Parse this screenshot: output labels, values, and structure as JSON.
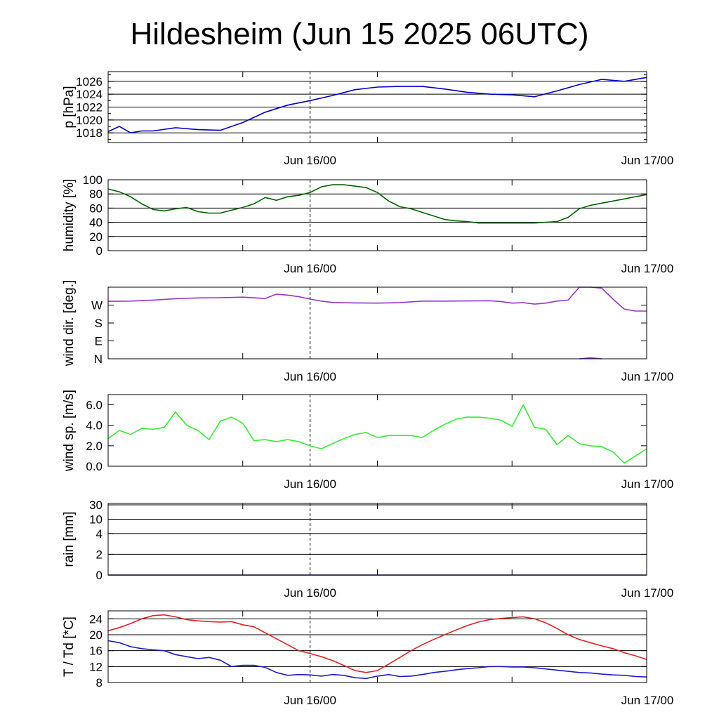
{
  "title": "Hildesheim (Jun 15 2025 06UTC)",
  "x_tick_labels": [
    "Jun 16/00",
    "Jun 17/00"
  ],
  "chart_data": [
    {
      "type": "line",
      "ylabel": "p [hPa]",
      "ylim": [
        1016.5,
        1027.5
      ],
      "yticks": [
        1018,
        1020,
        1022,
        1024,
        1026
      ],
      "ytick_labels": [
        "1018",
        "1020",
        "1022",
        "1024",
        "1026"
      ],
      "grid": true,
      "x_hours": [
        0,
        1,
        2,
        3,
        4,
        6,
        8,
        10,
        12,
        14,
        16,
        18,
        20,
        22,
        24,
        26,
        28,
        30,
        32,
        34,
        36,
        38,
        40,
        42,
        44,
        46,
        48
      ],
      "series": [
        {
          "color": "#0000cc",
          "values": [
            1018.2,
            1019.0,
            1018.0,
            1018.3,
            1018.3,
            1018.8,
            1018.5,
            1018.4,
            1019.6,
            1021.2,
            1022.3,
            1023.0,
            1023.8,
            1024.7,
            1025.1,
            1025.2,
            1025.2,
            1024.8,
            1024.3,
            1024.0,
            1023.9,
            1023.6,
            1024.5,
            1025.5,
            1026.3,
            1026.0,
            1026.6
          ]
        }
      ]
    },
    {
      "type": "line",
      "ylabel": "humidity [%]",
      "ylim": [
        0,
        100
      ],
      "yticks": [
        0,
        20,
        40,
        60,
        80,
        100
      ],
      "ytick_labels": [
        "0",
        "20",
        "40",
        "60",
        "80",
        "100"
      ],
      "grid": true,
      "x_hours": [
        0,
        1,
        2,
        3,
        4,
        5,
        6,
        7,
        8,
        9,
        10,
        11,
        12,
        13,
        14,
        15,
        16,
        17,
        18,
        19,
        20,
        21,
        22,
        23,
        24,
        25,
        26,
        27,
        28,
        29,
        30,
        31,
        32,
        33,
        34,
        35,
        36,
        37,
        38,
        39,
        40,
        41,
        42,
        43,
        44,
        45,
        46,
        47,
        48
      ],
      "series": [
        {
          "color": "#006400",
          "values": [
            87,
            83,
            76,
            66,
            58,
            56,
            59,
            61,
            55,
            53,
            53,
            57,
            61,
            66,
            75,
            71,
            76,
            78,
            82,
            90,
            93,
            93,
            91,
            89,
            82,
            70,
            62,
            59,
            54,
            49,
            44,
            42,
            41,
            39,
            39,
            39,
            39,
            39,
            39,
            40,
            41,
            47,
            59,
            64,
            67,
            70,
            73,
            76,
            79
          ]
        }
      ]
    },
    {
      "type": "line",
      "ylabel": "wind dir. [deg.]",
      "ylim": [
        0,
        360
      ],
      "yticks": [
        0,
        90,
        180,
        270
      ],
      "ytick_labels": [
        "N",
        "E",
        "S",
        "W"
      ],
      "grid": false,
      "x_hours": [
        0,
        2,
        4,
        6,
        8,
        10,
        12,
        14,
        15,
        16,
        17,
        18,
        19,
        20,
        22,
        24,
        26,
        28,
        30,
        32,
        34,
        35,
        36,
        37,
        38,
        39,
        40,
        41,
        42,
        43,
        44,
        45,
        46,
        47,
        48
      ],
      "series": [
        {
          "color": "#9933cc",
          "values": [
            289,
            290,
            295,
            302,
            306,
            307,
            310,
            303,
            325,
            320,
            312,
            300,
            290,
            283,
            281,
            280,
            282,
            290,
            290,
            291,
            292,
            288,
            280,
            282,
            275,
            280,
            290,
            295,
            360,
            360,
            355,
            300,
            250,
            240,
            240
          ]
        },
        {
          "color": "#9933cc",
          "values": [],
          "x_hours_alt": [
            42,
            43,
            44
          ],
          "values_alt": [
            0,
            5,
            0
          ]
        }
      ]
    },
    {
      "type": "line",
      "ylabel": "wind sp. [m/s]",
      "ylim": [
        0,
        7
      ],
      "yticks": [
        0,
        2,
        4,
        6
      ],
      "ytick_labels": [
        "0.0",
        "2.0",
        "4.0",
        "6.0"
      ],
      "grid": false,
      "x_hours": [
        0,
        1,
        2,
        3,
        4,
        5,
        6,
        7,
        8,
        9,
        10,
        11,
        12,
        13,
        14,
        15,
        16,
        17,
        18,
        19,
        20,
        21,
        22,
        23,
        24,
        25,
        26,
        27,
        28,
        29,
        30,
        31,
        32,
        33,
        34,
        35,
        36,
        37,
        38,
        39,
        40,
        41,
        42,
        43,
        44,
        45,
        46,
        47,
        48
      ],
      "series": [
        {
          "color": "#33ee33",
          "values": [
            2.7,
            3.5,
            3.1,
            3.7,
            3.6,
            3.8,
            5.3,
            4.0,
            3.5,
            2.6,
            4.4,
            4.8,
            4.2,
            2.5,
            2.6,
            2.4,
            2.6,
            2.4,
            2.0,
            1.7,
            2.2,
            2.7,
            3.1,
            3.3,
            2.8,
            3.0,
            3.0,
            3.0,
            2.8,
            3.5,
            4.1,
            4.6,
            4.8,
            4.8,
            4.7,
            4.5,
            3.9,
            6.0,
            3.8,
            3.6,
            2.1,
            3.0,
            2.2,
            2.0,
            1.9,
            1.4,
            0.3,
            1.0,
            1.7
          ]
        }
      ]
    },
    {
      "type": "line",
      "ylabel": "rain [mm]",
      "ylim": [
        0,
        30
      ],
      "yticks": [
        0,
        2,
        4,
        10,
        30
      ],
      "ytick_labels": [
        "0",
        "2",
        "4",
        "10",
        "30"
      ],
      "grid": true,
      "x_hours": [
        0,
        48
      ],
      "series": [
        {
          "color": "#000080",
          "values": [
            0,
            0
          ]
        }
      ]
    },
    {
      "type": "line",
      "ylabel": "T / Td [*C]",
      "ylim": [
        8,
        26
      ],
      "yticks": [
        8,
        12,
        16,
        20,
        24
      ],
      "ytick_labels": [
        "8",
        "12",
        "16",
        "20",
        "24"
      ],
      "grid": true,
      "x_hours": [
        0,
        1,
        2,
        3,
        4,
        5,
        6,
        7,
        8,
        9,
        10,
        11,
        12,
        13,
        14,
        15,
        16,
        17,
        18,
        19,
        20,
        21,
        22,
        23,
        24,
        25,
        26,
        27,
        28,
        29,
        30,
        31,
        32,
        33,
        34,
        35,
        36,
        37,
        38,
        39,
        40,
        41,
        42,
        43,
        44,
        45,
        46,
        47,
        48
      ],
      "series": [
        {
          "color": "#e82020",
          "values": [
            21.0,
            21.8,
            22.8,
            24.0,
            24.8,
            25.0,
            24.5,
            23.8,
            23.5,
            23.3,
            23.2,
            23.3,
            22.5,
            22.0,
            20.5,
            19.0,
            17.5,
            16.0,
            15.3,
            14.5,
            13.5,
            12.3,
            11.0,
            10.5,
            11.0,
            12.6,
            14.3,
            16.0,
            17.5,
            18.8,
            20.0,
            21.2,
            22.3,
            23.2,
            23.8,
            24.1,
            24.3,
            24.5,
            24.0,
            23.0,
            21.6,
            20.0,
            18.8,
            18.0,
            17.2,
            16.5,
            15.5,
            14.7,
            13.8
          ]
        },
        {
          "color": "#1a1acc",
          "values": [
            18.5,
            18.0,
            17.0,
            16.5,
            16.2,
            16.0,
            15.0,
            14.5,
            14.0,
            14.3,
            13.6,
            12.0,
            12.3,
            12.3,
            11.8,
            10.5,
            9.8,
            10.0,
            9.9,
            9.6,
            10.0,
            9.8,
            9.2,
            9.0,
            9.6,
            10.0,
            9.5,
            9.6,
            10.0,
            10.5,
            10.8,
            11.2,
            11.5,
            11.7,
            12.0,
            12.0,
            11.9,
            11.9,
            11.7,
            11.4,
            11.1,
            10.8,
            10.5,
            10.4,
            10.1,
            9.9,
            9.8,
            9.5,
            9.4
          ]
        }
      ]
    }
  ]
}
